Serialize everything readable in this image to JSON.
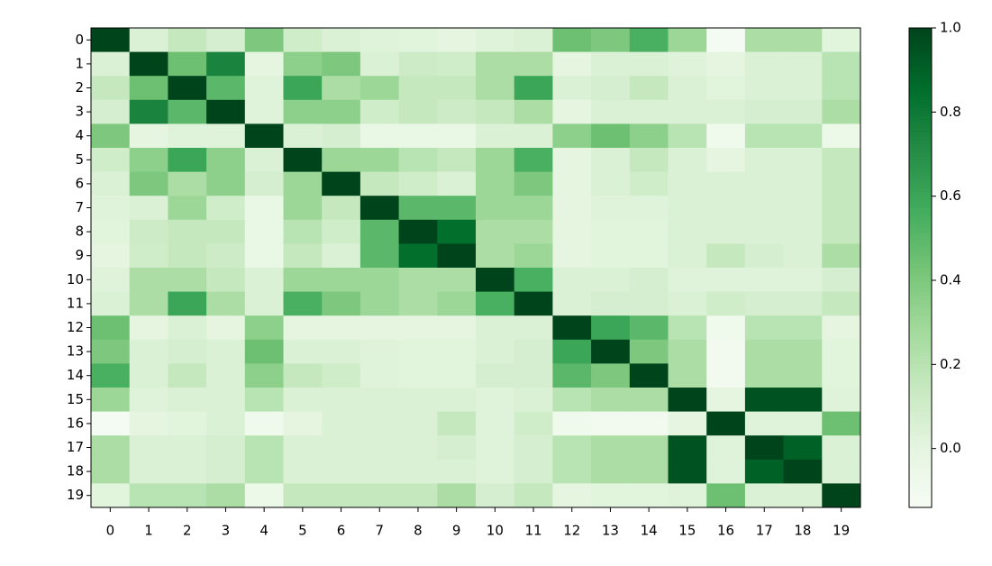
{
  "chart_data": {
    "type": "heatmap",
    "colormap": "Greens",
    "x_categories": [
      "0",
      "1",
      "2",
      "3",
      "4",
      "5",
      "6",
      "7",
      "8",
      "9",
      "10",
      "11",
      "12",
      "13",
      "14",
      "15",
      "16",
      "17",
      "18",
      "19"
    ],
    "y_categories": [
      "0",
      "1",
      "2",
      "3",
      "4",
      "5",
      "6",
      "7",
      "8",
      "9",
      "10",
      "11",
      "12",
      "13",
      "14",
      "15",
      "16",
      "17",
      "18",
      "19"
    ],
    "values": [
      [
        1,
        0.05,
        0.15,
        0.08,
        0.4,
        0.1,
        0.05,
        0.03,
        0.02,
        0.0,
        0.03,
        0.05,
        0.45,
        0.4,
        0.55,
        0.3,
        -0.12,
        0.25,
        0.25,
        0.02
      ],
      [
        0.05,
        1,
        0.45,
        0.75,
        0.0,
        0.35,
        0.4,
        0.05,
        0.12,
        0.1,
        0.25,
        0.25,
        0.0,
        0.05,
        0.05,
        0.03,
        0.0,
        0.05,
        0.05,
        0.2
      ],
      [
        0.15,
        0.45,
        1,
        0.5,
        0.03,
        0.6,
        0.25,
        0.3,
        0.15,
        0.15,
        0.25,
        0.6,
        0.05,
        0.08,
        0.15,
        0.05,
        0.02,
        0.05,
        0.05,
        0.2
      ],
      [
        0.08,
        0.75,
        0.5,
        1,
        0.03,
        0.35,
        0.35,
        0.1,
        0.15,
        0.12,
        0.15,
        0.25,
        0.0,
        0.05,
        0.05,
        0.05,
        0.05,
        0.08,
        0.08,
        0.25
      ],
      [
        0.4,
        0.0,
        0.03,
        0.03,
        1,
        0.05,
        0.08,
        -0.03,
        -0.03,
        -0.03,
        0.05,
        0.05,
        0.35,
        0.45,
        0.35,
        0.2,
        -0.08,
        0.2,
        0.2,
        -0.05
      ],
      [
        0.1,
        0.35,
        0.6,
        0.35,
        0.05,
        1,
        0.3,
        0.3,
        0.2,
        0.15,
        0.3,
        0.55,
        0.0,
        0.05,
        0.15,
        0.05,
        0.0,
        0.05,
        0.05,
        0.15
      ],
      [
        0.05,
        0.4,
        0.25,
        0.35,
        0.08,
        0.3,
        1,
        0.15,
        0.1,
        0.05,
        0.3,
        0.4,
        0.0,
        0.05,
        0.1,
        0.05,
        0.05,
        0.05,
        0.05,
        0.15
      ],
      [
        0.03,
        0.05,
        0.3,
        0.1,
        -0.03,
        0.3,
        0.15,
        1,
        0.5,
        0.5,
        0.3,
        0.3,
        0.0,
        0.03,
        0.03,
        0.05,
        0.05,
        0.05,
        0.05,
        0.15
      ],
      [
        0.02,
        0.12,
        0.15,
        0.15,
        -0.03,
        0.2,
        0.1,
        0.5,
        1,
        0.85,
        0.25,
        0.25,
        0.0,
        0.02,
        0.02,
        0.05,
        0.05,
        0.05,
        0.05,
        0.15
      ],
      [
        0.0,
        0.1,
        0.15,
        0.12,
        -0.03,
        0.15,
        0.05,
        0.5,
        0.85,
        1,
        0.25,
        0.3,
        0.0,
        0.02,
        0.02,
        0.05,
        0.15,
        0.08,
        0.05,
        0.25
      ],
      [
        0.03,
        0.25,
        0.25,
        0.15,
        0.05,
        0.3,
        0.3,
        0.3,
        0.25,
        0.25,
        1,
        0.55,
        0.05,
        0.05,
        0.08,
        0.03,
        0.03,
        0.03,
        0.03,
        0.08
      ],
      [
        0.05,
        0.25,
        0.6,
        0.25,
        0.05,
        0.55,
        0.4,
        0.3,
        0.25,
        0.3,
        0.55,
        1,
        0.05,
        0.08,
        0.08,
        0.05,
        0.1,
        0.08,
        0.08,
        0.15
      ],
      [
        0.45,
        0.0,
        0.05,
        0.0,
        0.35,
        0.0,
        0.0,
        0.0,
        0.0,
        0.0,
        0.05,
        0.05,
        1,
        0.6,
        0.5,
        0.2,
        -0.08,
        0.2,
        0.2,
        0.0
      ],
      [
        0.4,
        0.05,
        0.08,
        0.05,
        0.45,
        0.05,
        0.05,
        0.03,
        0.02,
        0.02,
        0.05,
        0.08,
        0.6,
        1,
        0.4,
        0.25,
        -0.1,
        0.25,
        0.25,
        0.02
      ],
      [
        0.55,
        0.05,
        0.15,
        0.05,
        0.35,
        0.15,
        0.1,
        0.03,
        0.02,
        0.02,
        0.08,
        0.08,
        0.5,
        0.4,
        1,
        0.25,
        -0.1,
        0.25,
        0.25,
        0.02
      ],
      [
        0.3,
        0.03,
        0.05,
        0.05,
        0.2,
        0.05,
        0.05,
        0.05,
        0.05,
        0.05,
        0.03,
        0.05,
        0.2,
        0.25,
        0.25,
        1,
        0.0,
        0.95,
        0.95,
        0.03
      ],
      [
        -0.12,
        0.0,
        0.02,
        0.05,
        -0.08,
        0.0,
        0.05,
        0.05,
        0.05,
        0.15,
        0.03,
        0.1,
        -0.08,
        -0.1,
        -0.1,
        0.0,
        1,
        0.03,
        0.03,
        0.45
      ],
      [
        0.25,
        0.05,
        0.05,
        0.08,
        0.2,
        0.05,
        0.05,
        0.05,
        0.05,
        0.08,
        0.03,
        0.08,
        0.2,
        0.25,
        0.25,
        0.95,
        0.03,
        1,
        0.9,
        0.05
      ],
      [
        0.25,
        0.05,
        0.05,
        0.08,
        0.2,
        0.05,
        0.05,
        0.05,
        0.05,
        0.05,
        0.03,
        0.08,
        0.2,
        0.25,
        0.25,
        0.95,
        0.03,
        0.9,
        1,
        0.05
      ],
      [
        0.02,
        0.2,
        0.2,
        0.25,
        -0.05,
        0.15,
        0.15,
        0.15,
        0.15,
        0.25,
        0.08,
        0.15,
        0.0,
        0.02,
        0.02,
        0.03,
        0.45,
        0.05,
        0.05,
        1
      ]
    ],
    "clim": [
      -0.14,
      1.0
    ],
    "cticks": [
      {
        "value": 0,
        "label": "0.0"
      },
      0.2,
      0.4,
      0.6,
      0.8,
      {
        "value": 1,
        "label": "1.0"
      }
    ]
  }
}
